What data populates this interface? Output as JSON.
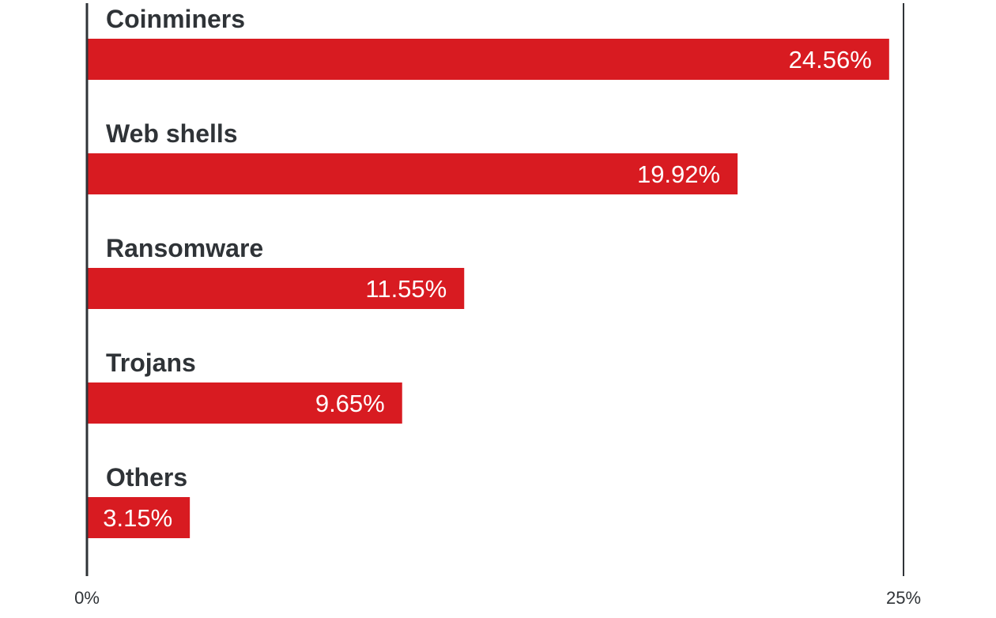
{
  "chart_data": {
    "type": "bar",
    "orientation": "horizontal",
    "categories": [
      "Coinminers",
      "Web shells",
      "Ransomware",
      "Trojans",
      "Others"
    ],
    "values": [
      24.56,
      19.92,
      11.55,
      9.65,
      3.15
    ],
    "value_labels": [
      "24.56%",
      "19.92%",
      "11.55%",
      "9.65%",
      "3.15%"
    ],
    "xlim": [
      0,
      25
    ],
    "x_tick_labels": [
      "0%",
      "25%"
    ],
    "title": "",
    "xlabel": "",
    "ylabel": "",
    "grid": false,
    "legend": "none",
    "bar_color": "#d81b21",
    "axis_color": "#2f3337"
  }
}
